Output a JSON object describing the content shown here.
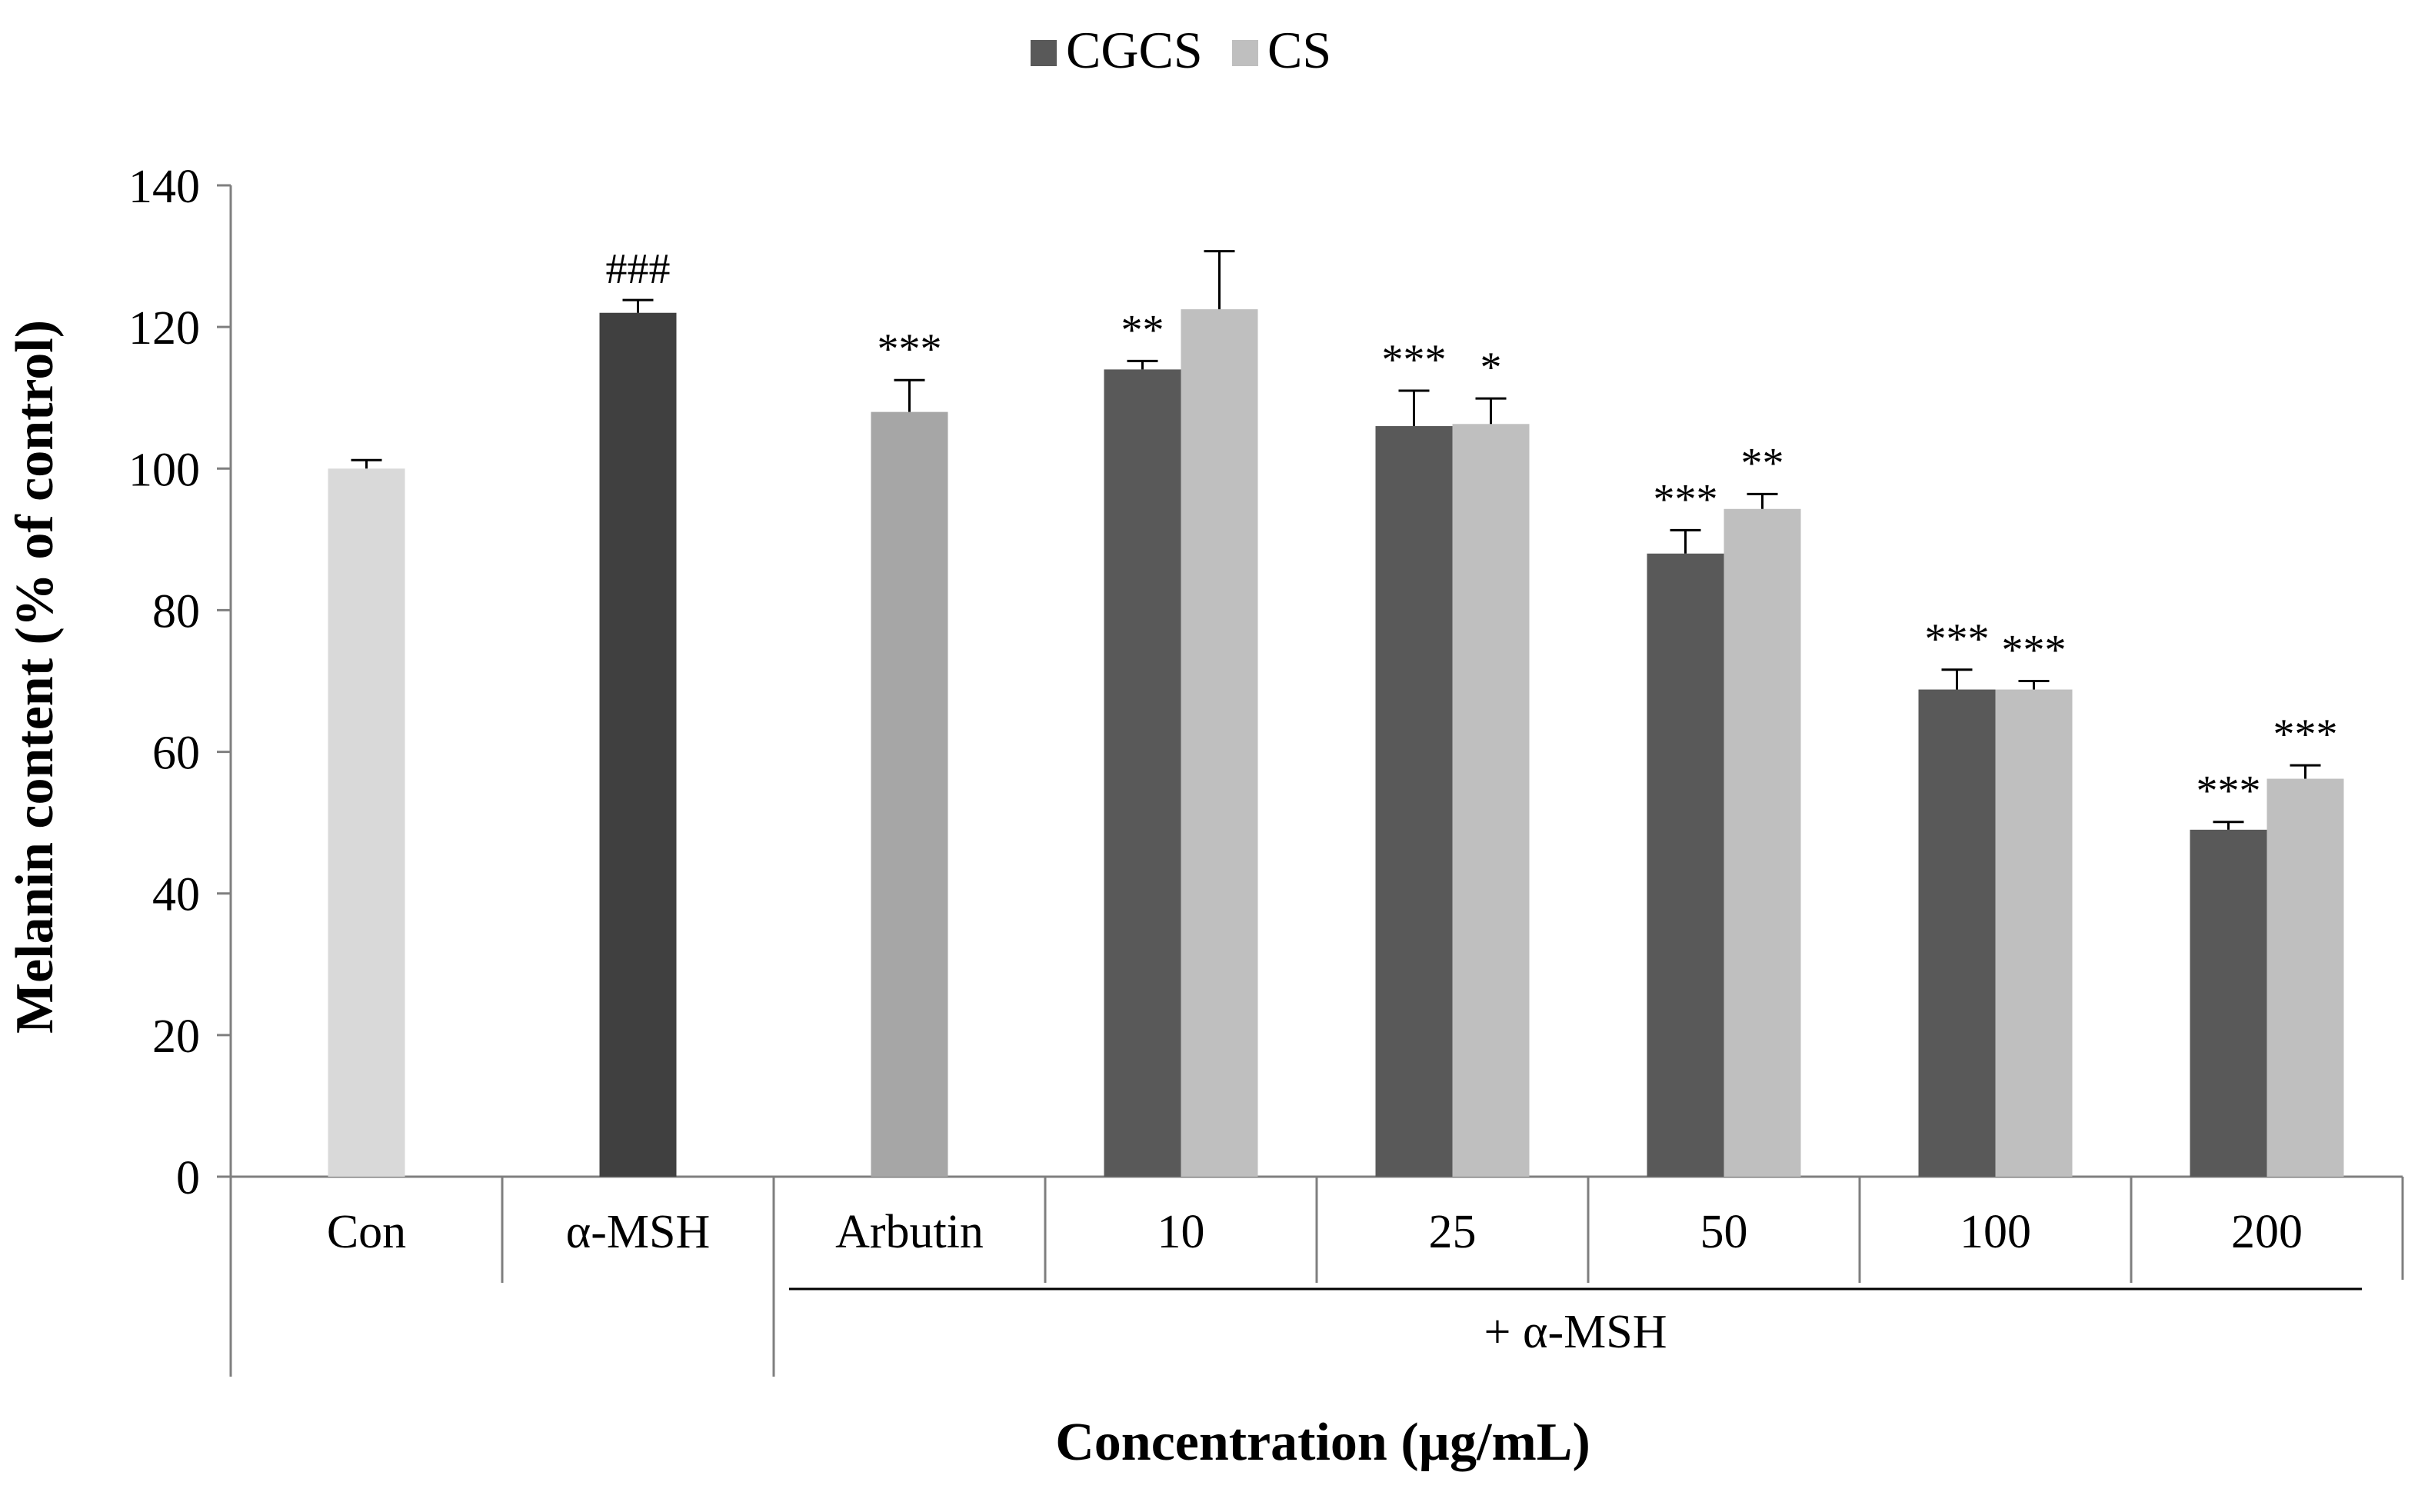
{
  "chart_data": {
    "type": "bar",
    "title": "",
    "ylabel": "Melanin content (% of control)",
    "xlabel": "Concentration (µg/mL)",
    "ylim": [
      0,
      140
    ],
    "yticks": [
      0,
      20,
      40,
      60,
      80,
      100,
      120,
      140
    ],
    "grid": false,
    "legend_position": "top-center",
    "series": [
      {
        "name": "CGCS",
        "color": "#595959"
      },
      {
        "name": "CS",
        "color": "#bfbfbf"
      }
    ],
    "groups": [
      {
        "label": "Con",
        "bars": [
          {
            "series": "",
            "value": 100,
            "error": 1.2,
            "color": "#d9d9d9",
            "annotation": ""
          }
        ]
      },
      {
        "label": "α-MSH",
        "bars": [
          {
            "series": "",
            "value": 122,
            "error": 1.8,
            "color": "#404040",
            "annotation": "###"
          }
        ]
      },
      {
        "label": "Arbutin",
        "bars": [
          {
            "series": "",
            "value": 108,
            "error": 4.5,
            "color": "#a6a6a6",
            "annotation": "***"
          }
        ]
      },
      {
        "label": "10",
        "bars": [
          {
            "series": "CGCS",
            "value": 114,
            "error": 1.2,
            "color": "#595959",
            "annotation": "**"
          },
          {
            "series": "CS",
            "value": 122.5,
            "error": 8.2,
            "color": "#bfbfbf",
            "annotation": ""
          }
        ]
      },
      {
        "label": "25",
        "bars": [
          {
            "series": "CGCS",
            "value": 106,
            "error": 5,
            "color": "#595959",
            "annotation": "***"
          },
          {
            "series": "CS",
            "value": 106.3,
            "error": 3.6,
            "color": "#bfbfbf",
            "annotation": "*"
          }
        ]
      },
      {
        "label": "50",
        "bars": [
          {
            "series": "CGCS",
            "value": 88,
            "error": 3.3,
            "color": "#595959",
            "annotation": "***"
          },
          {
            "series": "CS",
            "value": 94.3,
            "error": 2.1,
            "color": "#bfbfbf",
            "annotation": "**"
          }
        ]
      },
      {
        "label": "100",
        "bars": [
          {
            "series": "CGCS",
            "value": 68.8,
            "error": 2.8,
            "color": "#595959",
            "annotation": "***"
          },
          {
            "series": "CS",
            "value": 68.8,
            "error": 1.2,
            "color": "#bfbfbf",
            "annotation": "***"
          }
        ]
      },
      {
        "label": "200",
        "bars": [
          {
            "series": "CGCS",
            "value": 49,
            "error": 1.1,
            "color": "#595959",
            "annotation": "***"
          },
          {
            "series": "CS",
            "value": 56.2,
            "error": 1.9,
            "color": "#bfbfbf",
            "annotation": "***"
          }
        ]
      }
    ],
    "subgroup_label": "+ α-MSH"
  }
}
